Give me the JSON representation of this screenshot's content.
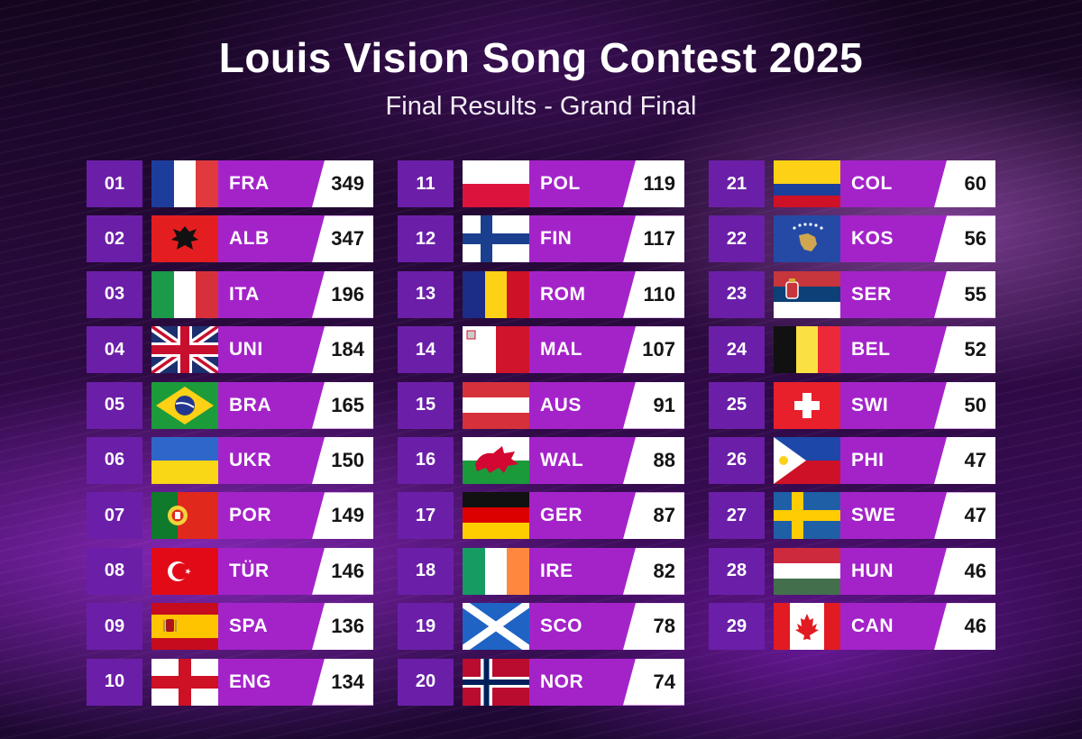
{
  "title": "Louis Vision Song Contest 2025",
  "subtitle": "Final Results - Grand Final",
  "colors": {
    "rank_bg": "#6b1fa8",
    "bar_bg": "#a423c9",
    "score_bg": "#ffffff"
  },
  "results": [
    {
      "rank": "01",
      "code": "FRA",
      "points": "349",
      "flag": "france-flag-icon"
    },
    {
      "rank": "02",
      "code": "ALB",
      "points": "347",
      "flag": "albania-flag-icon"
    },
    {
      "rank": "03",
      "code": "ITA",
      "points": "196",
      "flag": "italy-flag-icon"
    },
    {
      "rank": "04",
      "code": "UNI",
      "points": "184",
      "flag": "united-kingdom-flag-icon"
    },
    {
      "rank": "05",
      "code": "BRA",
      "points": "165",
      "flag": "brazil-flag-icon"
    },
    {
      "rank": "06",
      "code": "UKR",
      "points": "150",
      "flag": "ukraine-flag-icon"
    },
    {
      "rank": "07",
      "code": "POR",
      "points": "149",
      "flag": "portugal-flag-icon"
    },
    {
      "rank": "08",
      "code": "TÜR",
      "points": "146",
      "flag": "turkey-flag-icon"
    },
    {
      "rank": "09",
      "code": "SPA",
      "points": "136",
      "flag": "spain-flag-icon"
    },
    {
      "rank": "10",
      "code": "ENG",
      "points": "134",
      "flag": "england-flag-icon"
    },
    {
      "rank": "11",
      "code": "POL",
      "points": "119",
      "flag": "poland-flag-icon"
    },
    {
      "rank": "12",
      "code": "FIN",
      "points": "117",
      "flag": "finland-flag-icon"
    },
    {
      "rank": "13",
      "code": "ROM",
      "points": "110",
      "flag": "romania-flag-icon"
    },
    {
      "rank": "14",
      "code": "MAL",
      "points": "107",
      "flag": "malta-flag-icon"
    },
    {
      "rank": "15",
      "code": "AUS",
      "points": "91",
      "flag": "austria-flag-icon"
    },
    {
      "rank": "16",
      "code": "WAL",
      "points": "88",
      "flag": "wales-flag-icon"
    },
    {
      "rank": "17",
      "code": "GER",
      "points": "87",
      "flag": "germany-flag-icon"
    },
    {
      "rank": "18",
      "code": "IRE",
      "points": "82",
      "flag": "ireland-flag-icon"
    },
    {
      "rank": "19",
      "code": "SCO",
      "points": "78",
      "flag": "scotland-flag-icon"
    },
    {
      "rank": "20",
      "code": "NOR",
      "points": "74",
      "flag": "norway-flag-icon"
    },
    {
      "rank": "21",
      "code": "COL",
      "points": "60",
      "flag": "colombia-flag-icon"
    },
    {
      "rank": "22",
      "code": "KOS",
      "points": "56",
      "flag": "kosovo-flag-icon"
    },
    {
      "rank": "23",
      "code": "SER",
      "points": "55",
      "flag": "serbia-flag-icon"
    },
    {
      "rank": "24",
      "code": "BEL",
      "points": "52",
      "flag": "belgium-flag-icon"
    },
    {
      "rank": "25",
      "code": "SWI",
      "points": "50",
      "flag": "switzerland-flag-icon"
    },
    {
      "rank": "26",
      "code": "PHI",
      "points": "47",
      "flag": "philippines-flag-icon"
    },
    {
      "rank": "27",
      "code": "SWE",
      "points": "47",
      "flag": "sweden-flag-icon"
    },
    {
      "rank": "28",
      "code": "HUN",
      "points": "46",
      "flag": "hungary-flag-icon"
    },
    {
      "rank": "29",
      "code": "CAN",
      "points": "46",
      "flag": "canada-flag-icon"
    }
  ]
}
